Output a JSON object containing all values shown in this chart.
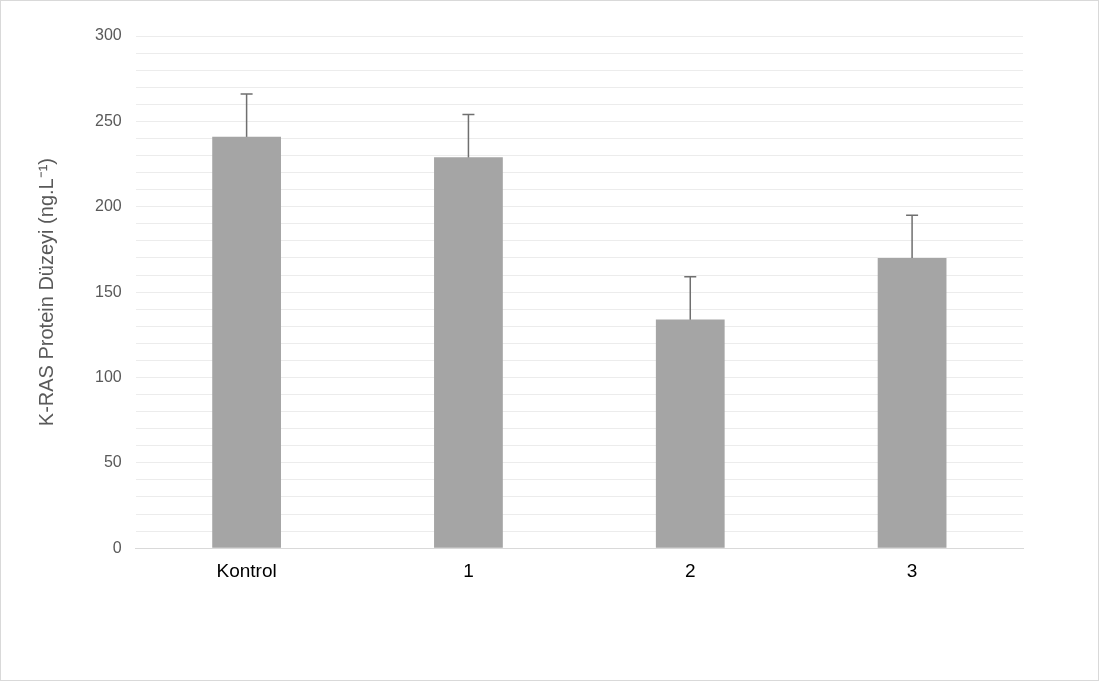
{
  "chart_data": {
    "type": "bar",
    "ylabel": "K-RAS Protein Düzeyi (ng.L⁻¹)",
    "categories": [
      "Kontrol",
      "1",
      "2",
      "3"
    ],
    "values": [
      241,
      229,
      134,
      170
    ],
    "errors": [
      25,
      25,
      25,
      25
    ],
    "color": "#a5a5a5",
    "ylim": [
      0,
      300
    ],
    "yticks": [
      0,
      {
        "value": 10,
        "label": null
      },
      {
        "value": 20,
        "label": null
      },
      {
        "value": 30,
        "label": null
      },
      {
        "value": 40,
        "label": null
      },
      50,
      {
        "value": 60,
        "label": null
      },
      {
        "value": 70,
        "label": null
      },
      {
        "value": 80,
        "label": null
      },
      {
        "value": 90,
        "label": null
      },
      100,
      {
        "value": 110,
        "label": null
      },
      {
        "value": 120,
        "label": null
      },
      {
        "value": 130,
        "label": null
      },
      {
        "value": 140,
        "label": null
      },
      150,
      {
        "value": 160,
        "label": null
      },
      {
        "value": 170,
        "label": null
      },
      {
        "value": 180,
        "label": null
      },
      {
        "value": 190,
        "label": null
      },
      200,
      {
        "value": 210,
        "label": null
      },
      {
        "value": 220,
        "label": null
      },
      {
        "value": 230,
        "label": null
      },
      {
        "value": 240,
        "label": null
      },
      250,
      {
        "value": 260,
        "label": null
      },
      {
        "value": 270,
        "label": null
      },
      {
        "value": 280,
        "label": null
      },
      {
        "value": 290,
        "label": null
      },
      300
    ],
    "grid": "y",
    "legend": false
  }
}
